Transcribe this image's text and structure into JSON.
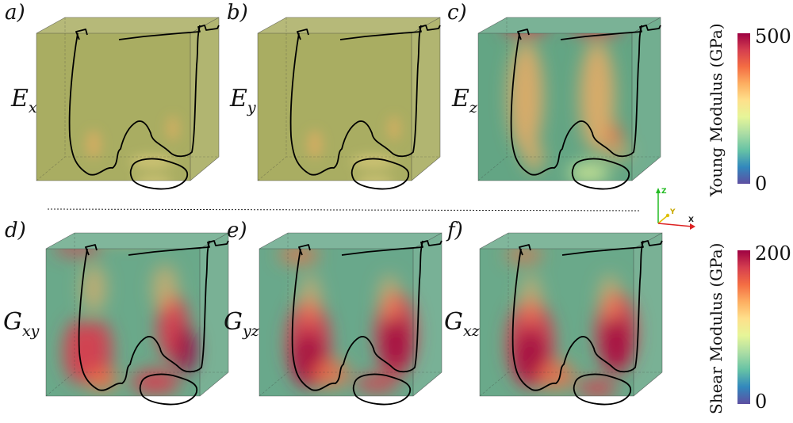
{
  "panels": [
    {
      "letter": "a)",
      "symbol": "E",
      "sub": "x",
      "field": "young",
      "pattern": "weak"
    },
    {
      "letter": "b)",
      "symbol": "E",
      "sub": "y",
      "field": "young",
      "pattern": "weak"
    },
    {
      "letter": "c)",
      "symbol": "E",
      "sub": "z",
      "field": "young",
      "pattern": "ez"
    },
    {
      "letter": "d)",
      "symbol": "G",
      "sub": "xy",
      "field": "shear",
      "pattern": "gxy"
    },
    {
      "letter": "e)",
      "symbol": "G",
      "sub": "yz",
      "field": "shear",
      "pattern": "gyz"
    },
    {
      "letter": "f)",
      "symbol": "G",
      "sub": "xz",
      "field": "shear",
      "pattern": "gxz"
    }
  ],
  "colorbars": {
    "young": {
      "title": "Young Modulus (GPa)",
      "min": "0",
      "max": "500",
      "min_value": 0,
      "max_value": 500
    },
    "shear": {
      "title": "Shear Modulus (GPa)",
      "min": "0",
      "max": "200",
      "min_value": 0,
      "max_value": 200
    }
  },
  "colormap": [
    "#5e4fa2",
    "#3288bd",
    "#66c2a5",
    "#abdda4",
    "#e6f598",
    "#fee08b",
    "#fdae61",
    "#f46d43",
    "#d53e4f",
    "#9e0142"
  ],
  "orientation_axes": {
    "z": "Z",
    "y": "Y",
    "x": "X",
    "colors": {
      "z": "#22bb22",
      "y": "#e0c000",
      "x": "#dd2222"
    }
  }
}
